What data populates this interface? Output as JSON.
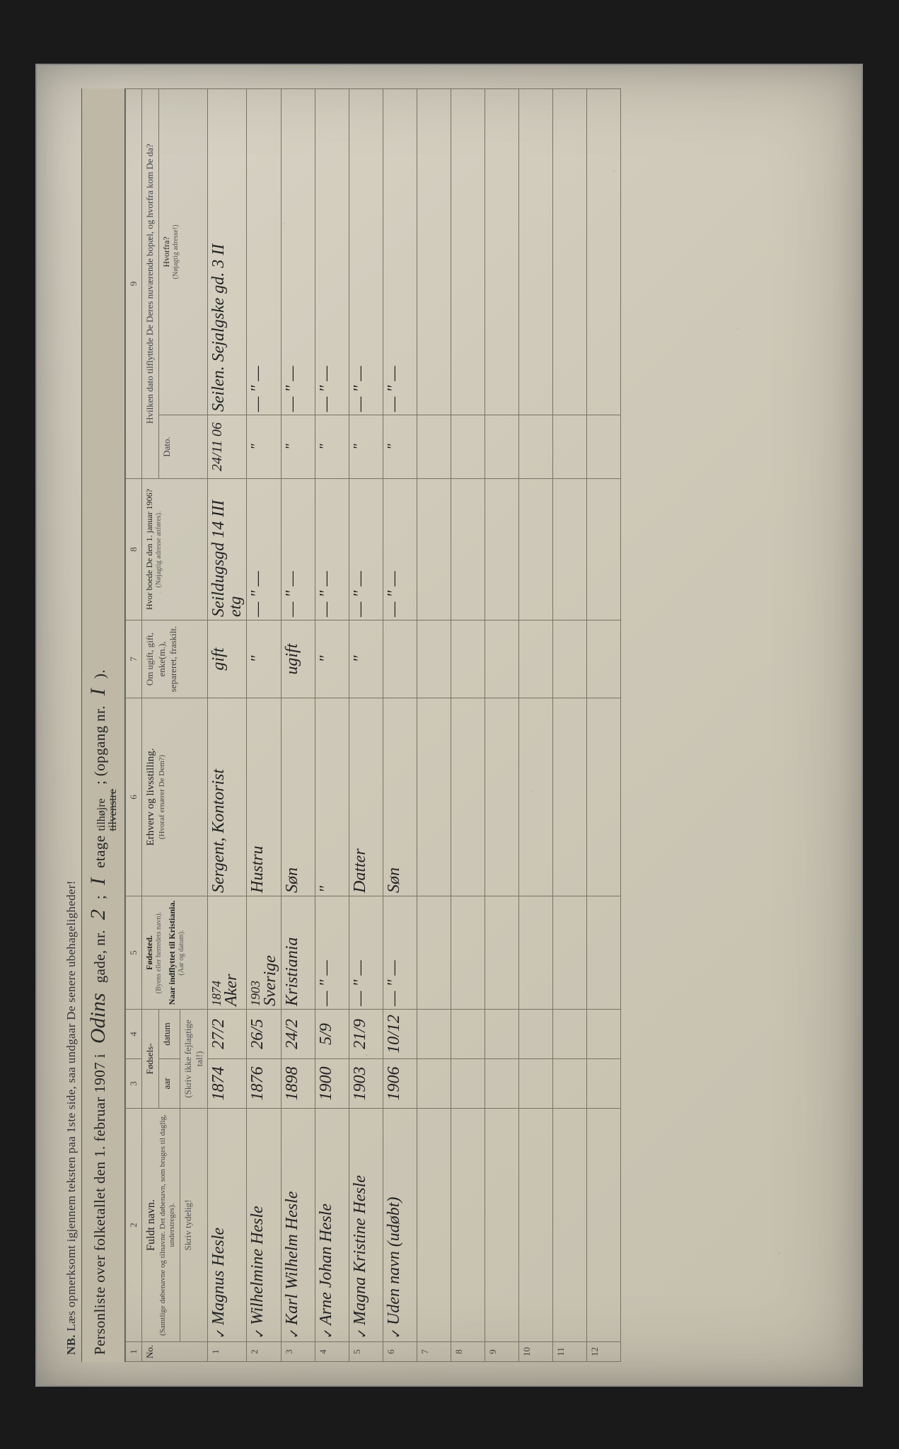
{
  "nb": {
    "prefix": "NB.",
    "text": "Læs opmerksomt igjennem teksten paa 1ste side, saa undgaar De senere ubehageligheder!"
  },
  "title": {
    "lead": "Personliste over folketallet den 1. februar 1907 i",
    "street": "Odins",
    "gade": "gade, nr.",
    "nr": "2",
    "semi": ";",
    "etage_hand": "I",
    "etage_label": "etage",
    "side_top": "tilhøjre",
    "side_bottom_strike": "tilvenstre",
    "opgang_label": "; (opgang nr.",
    "opgang": "I",
    "close": ")."
  },
  "columns": {
    "c1": "1",
    "c2": "2",
    "c3": "3",
    "c4": "4",
    "c5": "5",
    "c6": "6",
    "c7": "7",
    "c8": "8",
    "c9": "9",
    "no": "No.",
    "fuldt_navn": "Fuldt navn.",
    "fuldt_navn_sub": "(Samtlige døbenavne og tilnavne. Det døbenavn, som bruges til daglig, understreges).",
    "skriv": "Skriv tydelig!",
    "fodsels": "Fødsels-",
    "aar": "aar",
    "datum": "datum",
    "skriv_tal": "(Skriv ikke fejlagtige tal!)",
    "fodested": "Fødested.",
    "fodested_sub": "(Byens eller herredets navn).",
    "naar": "Naar indflyttet til Kristiania.",
    "naar_sub": "(Aar og datum).",
    "erhverv": "Erhverv og livsstilling.",
    "erhverv_sub": "(Hvoraf ernærer De Dem?)",
    "omugift": "Om ugift, gift, enke(m.), separeret, fraskilt.",
    "hvor": "Hvor boede De den 1. januar 1906?",
    "hvor_sub": "(Nøjagtig adresse anføres).",
    "hvilken": "Hvilken dato tilflyttede De Deres nuværende bopæl, og hvorfra kom De da?",
    "dato": "Dato.",
    "hvorfra": "Hvorfra?",
    "hvorfra_sub": "(Nøjagtig adresse!)"
  },
  "rows": [
    {
      "n": "1",
      "name": "Magnus Hesle",
      "aar": "1874",
      "dat": "27/2",
      "fst_top": "1874",
      "fst_bot": "Aker",
      "erh": "Sergent, Kontorist",
      "civ": "gift",
      "hvor": "Seildugsgd 14 III etg",
      "dato": "24/11 06",
      "fra": "Seilen. Sejalgske gd. 3 II"
    },
    {
      "n": "2",
      "name": "Wilhelmine Hesle",
      "aar": "1876",
      "dat": "26/5",
      "fst_top": "1903",
      "fst_bot": "Sverige",
      "erh": "Hustru",
      "civ": "\"",
      "hvor": "— \" —",
      "dato": "\"",
      "fra": "— \" —"
    },
    {
      "n": "3",
      "name": "Karl Wilhelm Hesle",
      "aar": "1898",
      "dat": "24/2",
      "fst_top": "",
      "fst_bot": "Kristiania",
      "erh": "Søn",
      "civ": "ugift",
      "hvor": "— \" —",
      "dato": "\"",
      "fra": "— \" —"
    },
    {
      "n": "4",
      "name": "Arne Johan Hesle",
      "aar": "1900",
      "dat": "5/9",
      "fst_top": "",
      "fst_bot": "— \" —",
      "erh": "\"",
      "civ": "\"",
      "hvor": "— \" —",
      "dato": "\"",
      "fra": "— \" —"
    },
    {
      "n": "5",
      "name": "Magna Kristine Hesle",
      "aar": "1903",
      "dat": "21/9",
      "fst_top": "",
      "fst_bot": "— \" —",
      "erh": "Datter",
      "civ": "\"",
      "hvor": "— \" —",
      "dato": "\"",
      "fra": "— \" —"
    },
    {
      "n": "6",
      "name": "Uden navn  (udøbt)",
      "aar": "1906",
      "dat": "10/12",
      "fst_top": "",
      "fst_bot": "— \" —",
      "erh": "Søn",
      "civ": "",
      "hvor": "— \" —",
      "dato": "\"",
      "fra": "— \" —"
    }
  ],
  "empty": [
    "7",
    "8",
    "9",
    "10",
    "11",
    "12"
  ]
}
